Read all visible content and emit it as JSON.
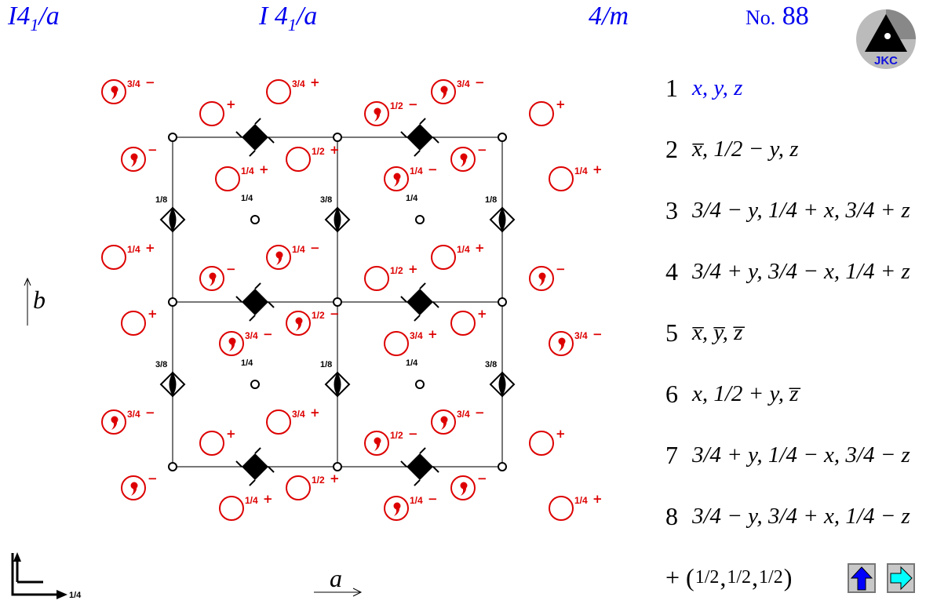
{
  "header": {
    "symbol_left": {
      "main": "I4",
      "sub": "1",
      "tail": "/a"
    },
    "symbol_center": {
      "main": "I 4",
      "sub": "1",
      "tail": "/a"
    },
    "point_group": "4/m",
    "number_prefix": "No.",
    "number": "88",
    "logo_text": "JKC"
  },
  "axes": {
    "a": "a",
    "b": "b",
    "origin_height": "1/4"
  },
  "colors": {
    "header": "#0000ee",
    "positions": "#dd0000",
    "symmetry": "#000000",
    "grid": "#777777"
  },
  "positions": [
    {
      "kind": "comma",
      "frac": "3/4",
      "sign": "−"
    },
    {
      "kind": "plain",
      "frac": "3/4",
      "sign": "+"
    },
    {
      "kind": "comma",
      "frac": "3/4",
      "sign": "−"
    },
    {
      "kind": "plain",
      "frac": "",
      "sign": "+"
    },
    {
      "kind": "comma",
      "frac": "1/2",
      "sign": "−"
    },
    {
      "kind": "plain",
      "frac": "",
      "sign": "+"
    },
    {
      "kind": "comma",
      "frac": "",
      "sign": "−"
    },
    {
      "kind": "plain",
      "frac": "1/2",
      "sign": "+"
    },
    {
      "kind": "comma",
      "frac": "",
      "sign": "−"
    },
    {
      "kind": "plain",
      "frac": "1/4",
      "sign": "+"
    },
    {
      "kind": "comma",
      "frac": "1/4",
      "sign": "−"
    },
    {
      "kind": "plain",
      "frac": "1/4",
      "sign": "+"
    },
    {
      "kind": "plain",
      "frac": "1/4",
      "sign": "+"
    },
    {
      "kind": "comma",
      "frac": "1/4",
      "sign": "−"
    },
    {
      "kind": "plain",
      "frac": "1/4",
      "sign": "+"
    },
    {
      "kind": "comma",
      "frac": "",
      "sign": "−"
    },
    {
      "kind": "plain",
      "frac": "1/2",
      "sign": "+"
    },
    {
      "kind": "comma",
      "frac": "",
      "sign": "−"
    },
    {
      "kind": "plain",
      "frac": "",
      "sign": "+"
    },
    {
      "kind": "comma",
      "frac": "1/2",
      "sign": "−"
    },
    {
      "kind": "plain",
      "frac": "",
      "sign": "+"
    },
    {
      "kind": "comma",
      "frac": "3/4",
      "sign": "−"
    },
    {
      "kind": "plain",
      "frac": "3/4",
      "sign": "+"
    },
    {
      "kind": "comma",
      "frac": "3/4",
      "sign": "−"
    },
    {
      "kind": "comma",
      "frac": "3/4",
      "sign": "−"
    },
    {
      "kind": "plain",
      "frac": "3/4",
      "sign": "+"
    },
    {
      "kind": "comma",
      "frac": "3/4",
      "sign": "−"
    },
    {
      "kind": "plain",
      "frac": "",
      "sign": "+"
    },
    {
      "kind": "comma",
      "frac": "1/2",
      "sign": "−"
    },
    {
      "kind": "plain",
      "frac": "",
      "sign": "+"
    },
    {
      "kind": "comma",
      "frac": "",
      "sign": "−"
    },
    {
      "kind": "plain",
      "frac": "1/2",
      "sign": "+"
    },
    {
      "kind": "comma",
      "frac": "",
      "sign": "−"
    },
    {
      "kind": "plain",
      "frac": "1/4",
      "sign": "+"
    },
    {
      "kind": "comma",
      "frac": "1/4",
      "sign": "−"
    },
    {
      "kind": "plain",
      "frac": "1/4",
      "sign": "+"
    }
  ],
  "screw_axis_heights": [
    "1/8",
    "3/8",
    "1/8",
    "3/8",
    "1/8",
    "3/8"
  ],
  "inversion_center_heights": [
    "1/4",
    "1/4",
    "1/4",
    "1/4"
  ],
  "coordinates": [
    {
      "n": "1",
      "text": "x, y, z",
      "highlight": true
    },
    {
      "n": "2",
      "text": "x̅, 1/2 − y, z"
    },
    {
      "n": "3",
      "text": "3/4 − y, 1/4 + x, 3/4 + z"
    },
    {
      "n": "4",
      "text": "3/4 + y, 3/4 − x, 1/4 + z"
    },
    {
      "n": "5",
      "text": "x̅, y̅, z̅"
    },
    {
      "n": "6",
      "text": "x, 1/2 + y, z̅"
    },
    {
      "n": "7",
      "text": "3/4 + y, 1/4 − x, 3/4 − z"
    },
    {
      "n": "8",
      "text": "3/4 − y, 3/4 + x, 1/4 − z"
    }
  ],
  "centering": {
    "prefix": "+",
    "open": "(",
    "fracs": [
      "1/2",
      "1/2",
      "1/2"
    ],
    "close": ")"
  },
  "nav": {
    "up_icon": "up-arrow-icon",
    "next_icon": "right-arrow-icon"
  }
}
